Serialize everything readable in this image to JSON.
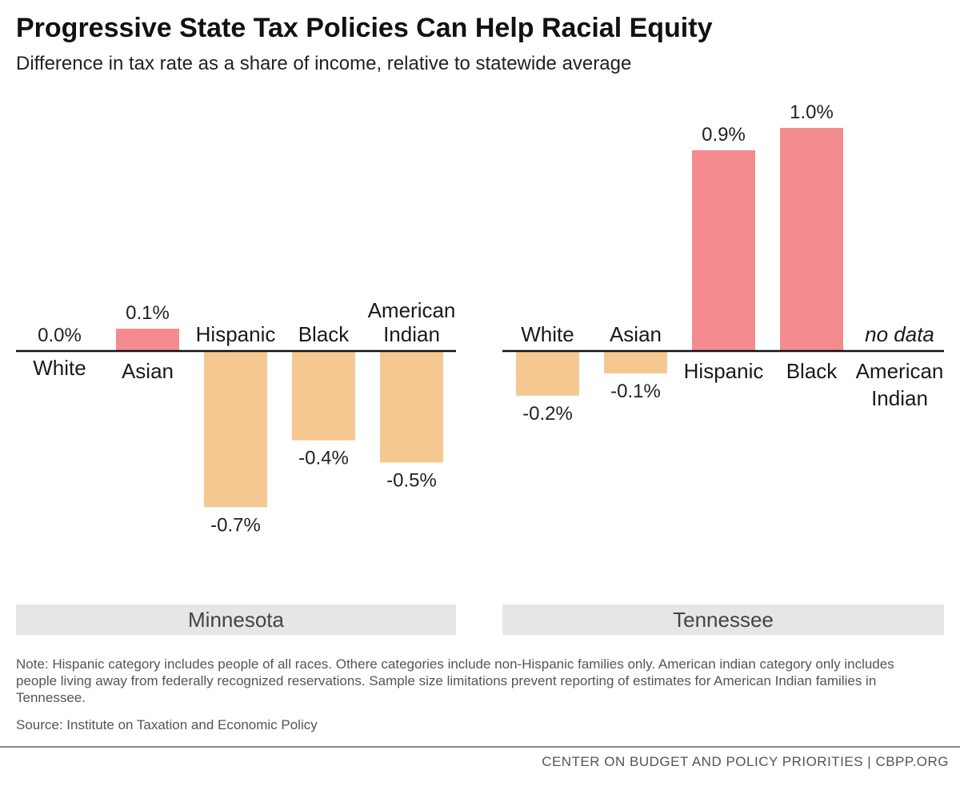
{
  "header": {
    "title": "Progressive State Tax Policies Can Help Racial Equity",
    "subtitle": "Difference in tax rate as a share of income, relative to statewide average"
  },
  "colors": {
    "positive": "#f48b8e",
    "negative": "#f5c891",
    "axis": "#111111",
    "panel_band": "#e6e6e6"
  },
  "chart_data": [
    {
      "type": "bar",
      "panel": "Minnesota",
      "unit": "%",
      "categories": [
        "White",
        "Asian",
        "Hispanic",
        "Black",
        "American Indian"
      ],
      "values": [
        0.0,
        0.1,
        -0.7,
        -0.4,
        -0.5
      ],
      "value_labels": [
        "0.0%",
        "0.1%",
        "-0.7%",
        "-0.4%",
        "-0.5%"
      ],
      "ylim": [
        -0.7,
        1.0
      ],
      "grid": false,
      "legend": "none"
    },
    {
      "type": "bar",
      "panel": "Tennessee",
      "unit": "%",
      "categories": [
        "White",
        "Asian",
        "Hispanic",
        "Black",
        "American Indian"
      ],
      "values": [
        -0.2,
        -0.1,
        0.9,
        1.0,
        null
      ],
      "value_labels": [
        "-0.2%",
        "-0.1%",
        "0.9%",
        "1.0%",
        "no data"
      ],
      "ylim": [
        -0.7,
        1.0
      ],
      "grid": false,
      "legend": "none"
    }
  ],
  "notes": {
    "note": "Note: Hispanic category includes people of all races. Othere categories include non-Hispanic families only. American indian category only includes people living away from federally recognized reservations. Sample size limitations prevent reporting of estimates for American Indian families in Tennessee.",
    "source": "Source: Institute on Taxation and Economic Policy"
  },
  "footer": {
    "credit": "CENTER ON BUDGET AND POLICY PRIORITIES | CBPP.ORG"
  }
}
